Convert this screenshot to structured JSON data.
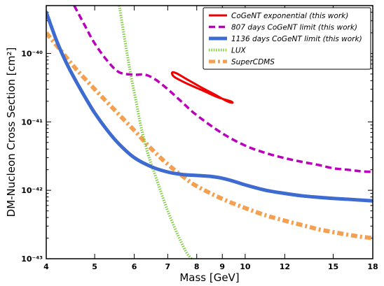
{
  "chart_data": {
    "type": "line",
    "xlabel": "Mass [GeV]",
    "ylabel": "DM-Nucleon Cross Section [cm²]",
    "xscale": "log",
    "yscale": "log",
    "xlim": [
      4,
      18
    ],
    "ylim": [
      1e-43,
      5e-40
    ],
    "xticks": [
      4,
      5,
      6,
      7,
      8,
      9,
      10,
      12,
      15,
      18
    ],
    "xtick_labels": [
      "4",
      "5",
      "6",
      "7",
      "8",
      "9",
      "10",
      "12",
      "15",
      "18"
    ],
    "yticks": [
      1e-43,
      1e-42,
      1e-41,
      1e-40
    ],
    "ytick_labels": [
      "10⁻⁴³",
      "10⁻⁴²",
      "10⁻⁴¹",
      "10⁻⁴⁰"
    ],
    "legend_position": "top-right",
    "series": [
      {
        "name": "CoGeNT exponential (this work)",
        "color": "#ee0000",
        "style": "solid-closed-contour",
        "x": [
          7.15,
          7.2,
          7.6,
          8.2,
          8.8,
          9.35,
          9.42,
          9.2,
          8.7,
          8.1,
          7.6,
          7.3,
          7.15
        ],
        "y": [
          5.3e-41,
          4.6e-41,
          3.7e-41,
          2.9e-41,
          2.3e-41,
          2e-41,
          1.9e-41,
          2e-41,
          2.5e-41,
          3.3e-41,
          4.3e-41,
          5.1e-41,
          5.3e-41
        ]
      },
      {
        "name": "807 days CoGeNT limit (this work)",
        "color": "#bb00bb",
        "style": "dashed",
        "x": [
          4.55,
          4.8,
          5.0,
          5.3,
          5.6,
          6.0,
          6.3,
          6.6,
          7.0,
          7.5,
          8.0,
          9.0,
          10.0,
          11.0,
          12.0,
          13.0,
          14.0,
          15.0,
          16.0,
          17.0,
          18.0
        ],
        "y": [
          5e-40,
          2.4e-40,
          1.4e-40,
          7.8e-41,
          5.3e-41,
          4.9e-41,
          4.9e-41,
          4.2e-41,
          3e-41,
          1.9e-41,
          1.25e-41,
          6.8e-42,
          4.5e-42,
          3.5e-42,
          2.95e-42,
          2.6e-42,
          2.35e-42,
          2.1e-42,
          2e-42,
          1.9e-42,
          1.85e-42
        ]
      },
      {
        "name": "1136 days CoGeNT limit (this work)",
        "color": "#3e6bd0",
        "style": "solid",
        "x": [
          4.0,
          4.2,
          4.4,
          4.6,
          4.8,
          5.0,
          5.3,
          5.6,
          6.0,
          6.5,
          7.0,
          7.5,
          8.0,
          8.5,
          9.0,
          9.5,
          10.0,
          11.0,
          12.0,
          13.0,
          14.0,
          15.0,
          16.0,
          17.0,
          18.0
        ],
        "y": [
          4e-40,
          1.5e-40,
          7e-41,
          3.8e-41,
          2.2e-41,
          1.35e-41,
          7.5e-42,
          4.7e-42,
          3e-42,
          2.2e-42,
          1.85e-42,
          1.7e-42,
          1.65e-42,
          1.6e-42,
          1.5e-42,
          1.35e-42,
          1.2e-42,
          1e-42,
          9e-43,
          8.3e-43,
          7.9e-43,
          7.6e-43,
          7.4e-43,
          7.2e-43,
          7e-43
        ]
      },
      {
        "name": "LUX",
        "color": "#77cc33",
        "style": "dotted",
        "x": [
          5.6,
          5.75,
          5.9,
          6.05,
          6.2,
          6.4,
          6.6,
          6.8,
          7.0,
          7.3,
          7.6,
          7.8
        ],
        "y": [
          5e-40,
          1.5e-40,
          5e-41,
          2e-41,
          8e-42,
          3.3e-42,
          1.7e-42,
          9e-43,
          5e-43,
          2.4e-43,
          1.3e-43,
          1e-43
        ]
      },
      {
        "name": "SuperCDMS",
        "color": "#f5a050",
        "style": "dash-dot",
        "x": [
          4.0,
          4.3,
          4.6,
          5.0,
          5.5,
          6.0,
          6.5,
          7.0,
          7.5,
          8.0,
          9.0,
          10.0,
          11.0,
          12.0,
          13.0,
          14.0,
          15.0,
          16.0,
          17.0,
          18.0
        ],
        "y": [
          2e-40,
          1.05e-40,
          5.8e-41,
          3e-41,
          1.45e-41,
          7.5e-42,
          4e-42,
          2.4e-42,
          1.6e-42,
          1.15e-42,
          7.5e-43,
          5.5e-43,
          4.3e-43,
          3.6e-43,
          3.1e-43,
          2.7e-43,
          2.45e-43,
          2.25e-43,
          2.1e-43,
          2e-43
        ]
      }
    ]
  }
}
